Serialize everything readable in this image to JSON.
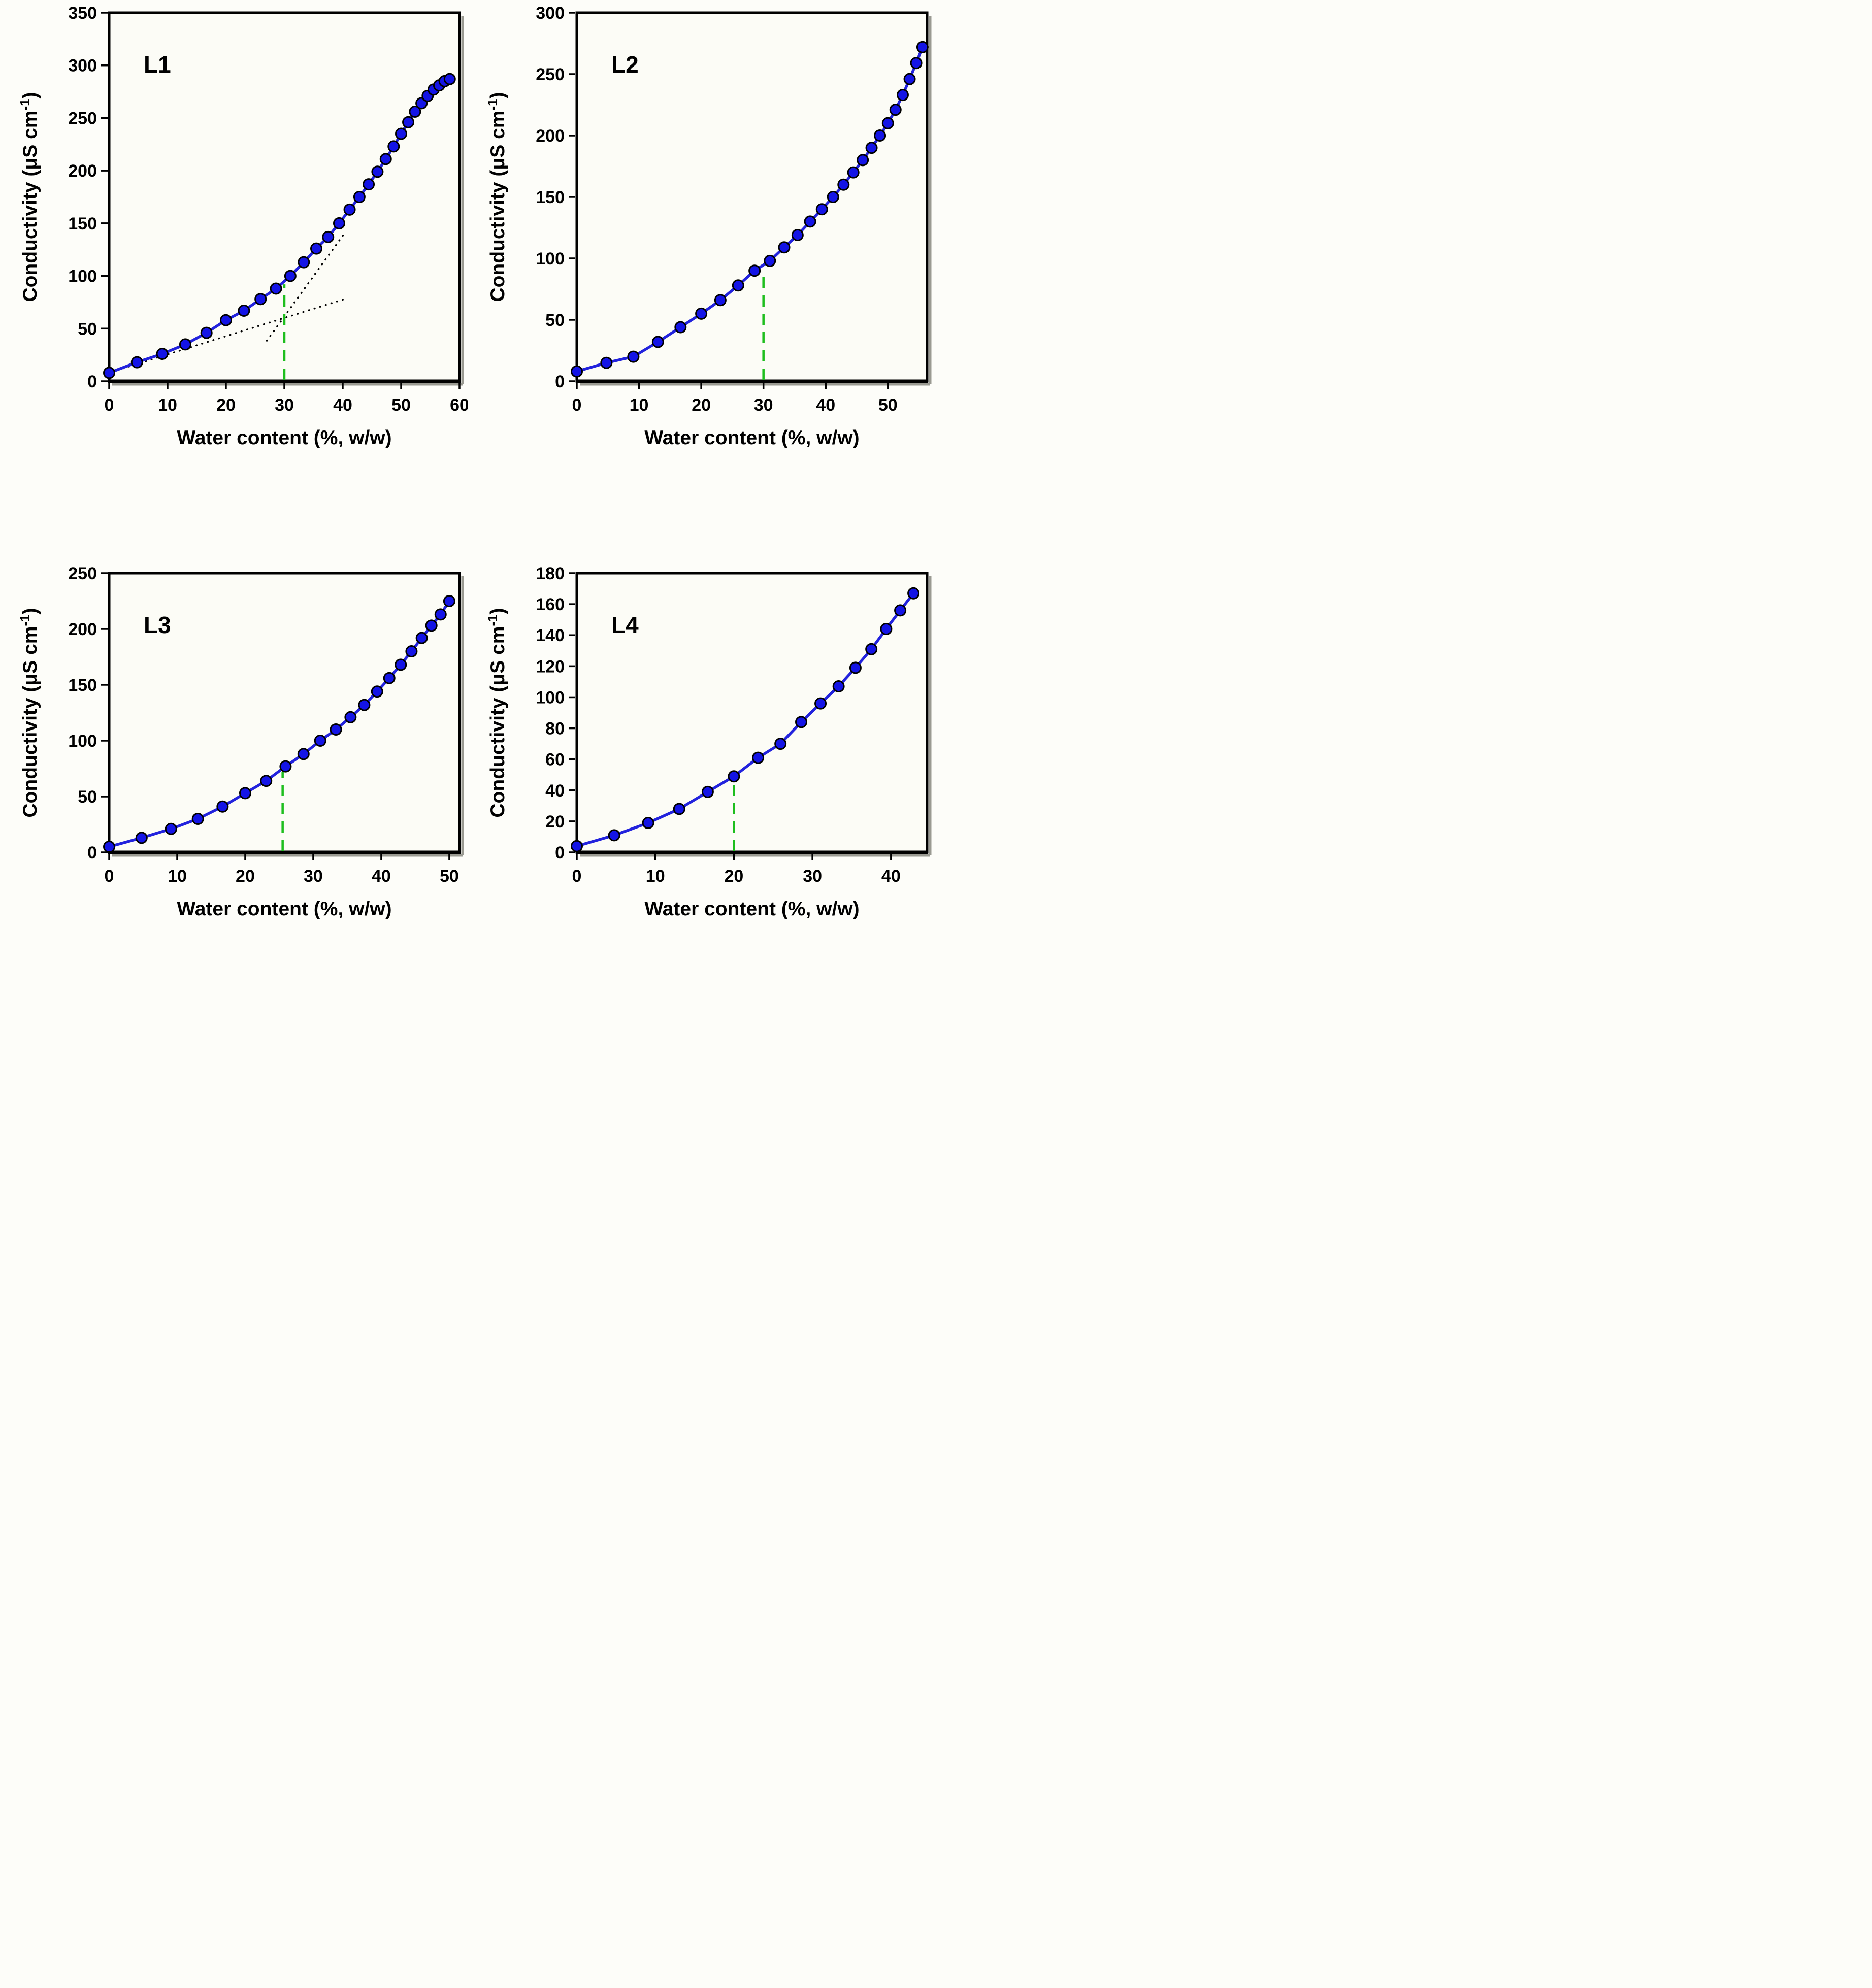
{
  "figure": {
    "background": "#fdfdf9",
    "plot_fill": "#fcfcf6",
    "frame_color": "#000000",
    "shadow_color": "#9a9a92",
    "marker_color": "#1414e6",
    "marker_edge": "#000000",
    "line_color": "#2222dd",
    "cmc_color": "#1ebe1e",
    "tangent_color": "#000000"
  },
  "chart_data": [
    {
      "type": "line",
      "panel_label": "L1",
      "xlabel": "Water content (%, w/w)",
      "ylabel": {
        "prefix": "Conductivity (μS cm",
        "sup": "-1",
        "suffix": ")"
      },
      "xlim": [
        0,
        60
      ],
      "ylim": [
        0,
        350
      ],
      "xticks": [
        0,
        10,
        20,
        30,
        40,
        50,
        60
      ],
      "yticks": [
        0,
        50,
        100,
        150,
        200,
        250,
        300,
        350
      ],
      "x": [
        0,
        4.76,
        9.09,
        13.04,
        16.67,
        20,
        23.08,
        25.93,
        28.57,
        31.03,
        33.33,
        35.48,
        37.5,
        39.39,
        41.18,
        42.86,
        44.44,
        45.95,
        47.37,
        48.72,
        50,
        51.22,
        52.38,
        53.49,
        54.55,
        55.56,
        56.52,
        57.45,
        58.33
      ],
      "y": [
        8,
        18,
        26,
        35,
        46,
        58,
        67,
        78,
        88,
        100,
        113,
        126,
        137,
        150,
        163,
        175,
        187,
        199,
        211,
        223,
        235,
        246,
        256,
        264,
        271,
        277,
        281,
        285,
        287
      ],
      "cmc_line": {
        "x": 30,
        "y_top": 92
      },
      "tangent_lines": [
        {
          "x1": 0.5,
          "y1": 9,
          "x2": 40.3,
          "y2": 78
        },
        {
          "x1": 27,
          "y1": 38.5,
          "x2": 40.5,
          "y2": 142
        }
      ]
    },
    {
      "type": "line",
      "panel_label": "L2",
      "xlabel": "Water content (%, w/w)",
      "ylabel": {
        "prefix": "Conductivity (μS cm",
        "sup": "-1",
        "suffix": ")"
      },
      "xlim": [
        0,
        56.3
      ],
      "ylim": [
        0,
        300
      ],
      "xticks": [
        0,
        10,
        20,
        30,
        40,
        50
      ],
      "yticks": [
        0,
        50,
        100,
        150,
        200,
        250,
        300
      ],
      "x": [
        0,
        4.76,
        9.09,
        13.04,
        16.67,
        20,
        23.08,
        25.93,
        28.57,
        31.03,
        33.33,
        35.48,
        37.5,
        39.39,
        41.18,
        42.86,
        44.44,
        45.95,
        47.37,
        48.72,
        50,
        51.22,
        52.38,
        53.49,
        54.55,
        55.56
      ],
      "y": [
        8,
        15,
        20,
        32,
        44,
        55,
        66,
        78,
        90,
        98,
        109,
        119,
        130,
        140,
        150,
        160,
        170,
        180,
        190,
        200,
        210,
        221,
        233,
        246,
        259,
        272
      ],
      "cmc_line": {
        "x": 30,
        "y_top": 88
      },
      "tangent_lines": []
    },
    {
      "type": "line",
      "panel_label": "L3",
      "xlabel": "Water content (%, w/w)",
      "ylabel": {
        "prefix": "Conductivity (μS cm",
        "sup": "-1",
        "suffix": ")"
      },
      "xlim": [
        0,
        51.5
      ],
      "ylim": [
        0,
        250
      ],
      "xticks": [
        0,
        10,
        20,
        30,
        40,
        50
      ],
      "yticks": [
        0,
        50,
        100,
        150,
        200,
        250
      ],
      "x": [
        0,
        4.76,
        9.09,
        13.04,
        16.67,
        20,
        23.08,
        25.93,
        28.57,
        31.03,
        33.33,
        35.48,
        37.5,
        39.39,
        41.18,
        42.86,
        44.44,
        45.95,
        47.37,
        48.72,
        50
      ],
      "y": [
        5,
        13,
        21,
        30,
        41,
        53,
        64,
        77,
        88,
        100,
        110,
        121,
        132,
        144,
        156,
        168,
        180,
        192,
        203,
        213,
        225
      ],
      "cmc_line": {
        "x": 25.5,
        "y_top": 72
      },
      "tangent_lines": []
    },
    {
      "type": "line",
      "panel_label": "L4",
      "xlabel": "Water content (%, w/w)",
      "ylabel": {
        "prefix": "Conductivity (μS cm",
        "sup": "-1",
        "suffix": ")"
      },
      "xlim": [
        0,
        44.6
      ],
      "ylim": [
        0,
        180
      ],
      "xticks": [
        0,
        10,
        20,
        30,
        40
      ],
      "yticks": [
        0,
        20,
        40,
        60,
        80,
        100,
        120,
        140,
        160,
        180
      ],
      "x": [
        0,
        4.76,
        9.09,
        13.04,
        16.67,
        20,
        23.08,
        25.93,
        28.57,
        31.03,
        33.33,
        35.48,
        37.5,
        39.39,
        41.18,
        42.86
      ],
      "y": [
        4,
        11,
        19,
        28,
        39,
        49,
        61,
        70,
        84,
        96,
        107,
        119,
        131,
        144,
        156,
        167
      ],
      "cmc_line": {
        "x": 20,
        "y_top": 46
      },
      "tangent_lines": []
    }
  ]
}
